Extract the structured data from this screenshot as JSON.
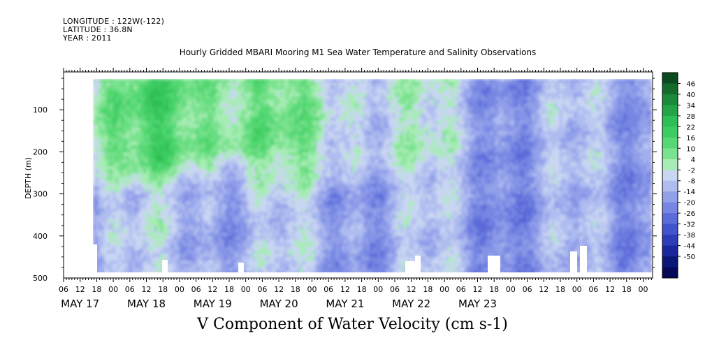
{
  "header": {
    "longitude": "LONGITUDE : 122W(-122)",
    "latitude": "LATITUDE : 36.8N",
    "year": "YEAR : 2011"
  },
  "chart_data": {
    "type": "heatmap",
    "title": "Hourly Gridded MBARI Mooring M1 Sea Water Temperature and Salinity Observations",
    "footer_title": "V Component of Water Velocity (cm s-1)",
    "ylabel": "DEPTH (m)",
    "xlabel": "",
    "y_reversed": true,
    "ylim": [
      500,
      10
    ],
    "y_ticks": [
      100,
      200,
      300,
      400,
      500
    ],
    "data_depth_range": [
      20,
      488
    ],
    "x_hour_ticks": [
      "06",
      "12",
      "18",
      "00",
      "06",
      "12",
      "18",
      "00",
      "06",
      "12",
      "18",
      "00",
      "06",
      "12",
      "18",
      "00",
      "06",
      "12",
      "18",
      "00",
      "06",
      "12",
      "18",
      "00",
      "06",
      "12",
      "18",
      "00",
      "06",
      "12",
      "18",
      "00",
      "06",
      "12",
      "18",
      "00"
    ],
    "x_day_labels": [
      "MAY 17",
      "MAY 18",
      "MAY 19",
      "MAY 20",
      "MAY 21",
      "MAY 22",
      "MAY 23"
    ],
    "colorbar": {
      "levels": [
        -50,
        -44,
        -38,
        -32,
        -26,
        -20,
        -14,
        -8,
        -2,
        4,
        10,
        16,
        22,
        28,
        34,
        40,
        46
      ],
      "tick_labels": [
        "46",
        "40",
        "34",
        "28",
        "22",
        "16",
        "10",
        "4",
        "-2",
        "-8",
        "-14",
        "-20",
        "-26",
        "-32",
        "-38",
        "-44",
        "-50"
      ],
      "bands_top_to_bottom": [
        "#0a4a1e",
        "#136b2d",
        "#1b8a3a",
        "#22a447",
        "#2dbf55",
        "#3ccc62",
        "#55d873",
        "#79e28e",
        "#a6ecb4",
        "#c9d6f2",
        "#aebcf0",
        "#929fe9",
        "#7686e2",
        "#5b6bd9",
        "#4254cc",
        "#2c3bb8",
        "#1a279c",
        "#0c1679",
        "#06085a"
      ]
    },
    "field_description_colors": {
      "positive_north": "#3ccc62",
      "negative_south": "#8898ea",
      "near_zero": "#c3d2f2"
    },
    "series": [
      {
        "x_day": "MAY 17 12:00-MAY 18 00:00",
        "surface_0_200m_mean_cmps": 12,
        "deep_200_500m_mean_cmps": -4
      },
      {
        "x_day": "MAY 18",
        "surface_0_200m_mean_cmps": 18,
        "deep_200_500m_mean_cmps": -6
      },
      {
        "x_day": "MAY 19",
        "surface_0_200m_mean_cmps": 14,
        "deep_200_500m_mean_cmps": -5
      },
      {
        "x_day": "MAY 20",
        "surface_0_200m_mean_cmps": 4,
        "deep_200_500m_mean_cmps": -8
      },
      {
        "x_day": "MAY 21",
        "surface_0_200m_mean_cmps": 2,
        "deep_200_500m_mean_cmps": -6
      },
      {
        "x_day": "MAY 22",
        "surface_0_200m_mean_cmps": -10,
        "deep_200_500m_mean_cmps": -12
      },
      {
        "x_day": "MAY 23",
        "surface_0_200m_mean_cmps": -8,
        "deep_200_500m_mean_cmps": -10
      }
    ]
  }
}
